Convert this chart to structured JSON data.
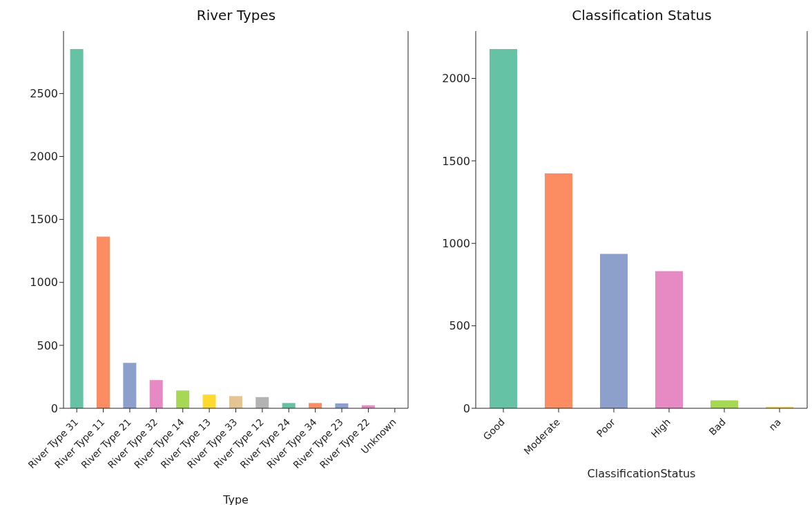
{
  "chart_data": [
    {
      "type": "bar",
      "title": "River Types",
      "xlabel": "Type",
      "categories": [
        "River Type 31",
        "River Type 11",
        "River Type 21",
        "River Type 32",
        "River Type 14",
        "River Type 13",
        "River Type 33",
        "River Type 12",
        "River Type 24",
        "River Type 34",
        "River Type 23",
        "River Type 22",
        "Unknown"
      ],
      "values": [
        2853,
        1363,
        361,
        224,
        141,
        109,
        97,
        89,
        42,
        42,
        39,
        24,
        null
      ],
      "colors": [
        "#66c2a5",
        "#fc8d62",
        "#8da0cb",
        "#e78ac3",
        "#a6d854",
        "#ffd92f",
        "#e5c494",
        "#b3b3b3",
        "#66c2a5",
        "#fc8d62",
        "#8da0cb",
        "#e78ac3",
        "#a6d854"
      ],
      "ylim": [
        0,
        2996
      ],
      "yticks": [
        0,
        500,
        1000,
        1500,
        2000,
        2500
      ]
    },
    {
      "type": "bar",
      "title": "Classification Status",
      "xlabel": "ClassificationStatus",
      "categories": [
        "Good",
        "Moderate",
        "Poor",
        "High",
        "Bad",
        "na"
      ],
      "values": [
        2178,
        1424,
        936,
        831,
        48,
        9
      ],
      "colors": [
        "#66c2a5",
        "#fc8d62",
        "#8da0cb",
        "#e78ac3",
        "#a6d854",
        "#ffd92f"
      ],
      "ylim": [
        0,
        2287
      ],
      "yticks": [
        0,
        500,
        1000,
        1500,
        2000
      ]
    }
  ]
}
